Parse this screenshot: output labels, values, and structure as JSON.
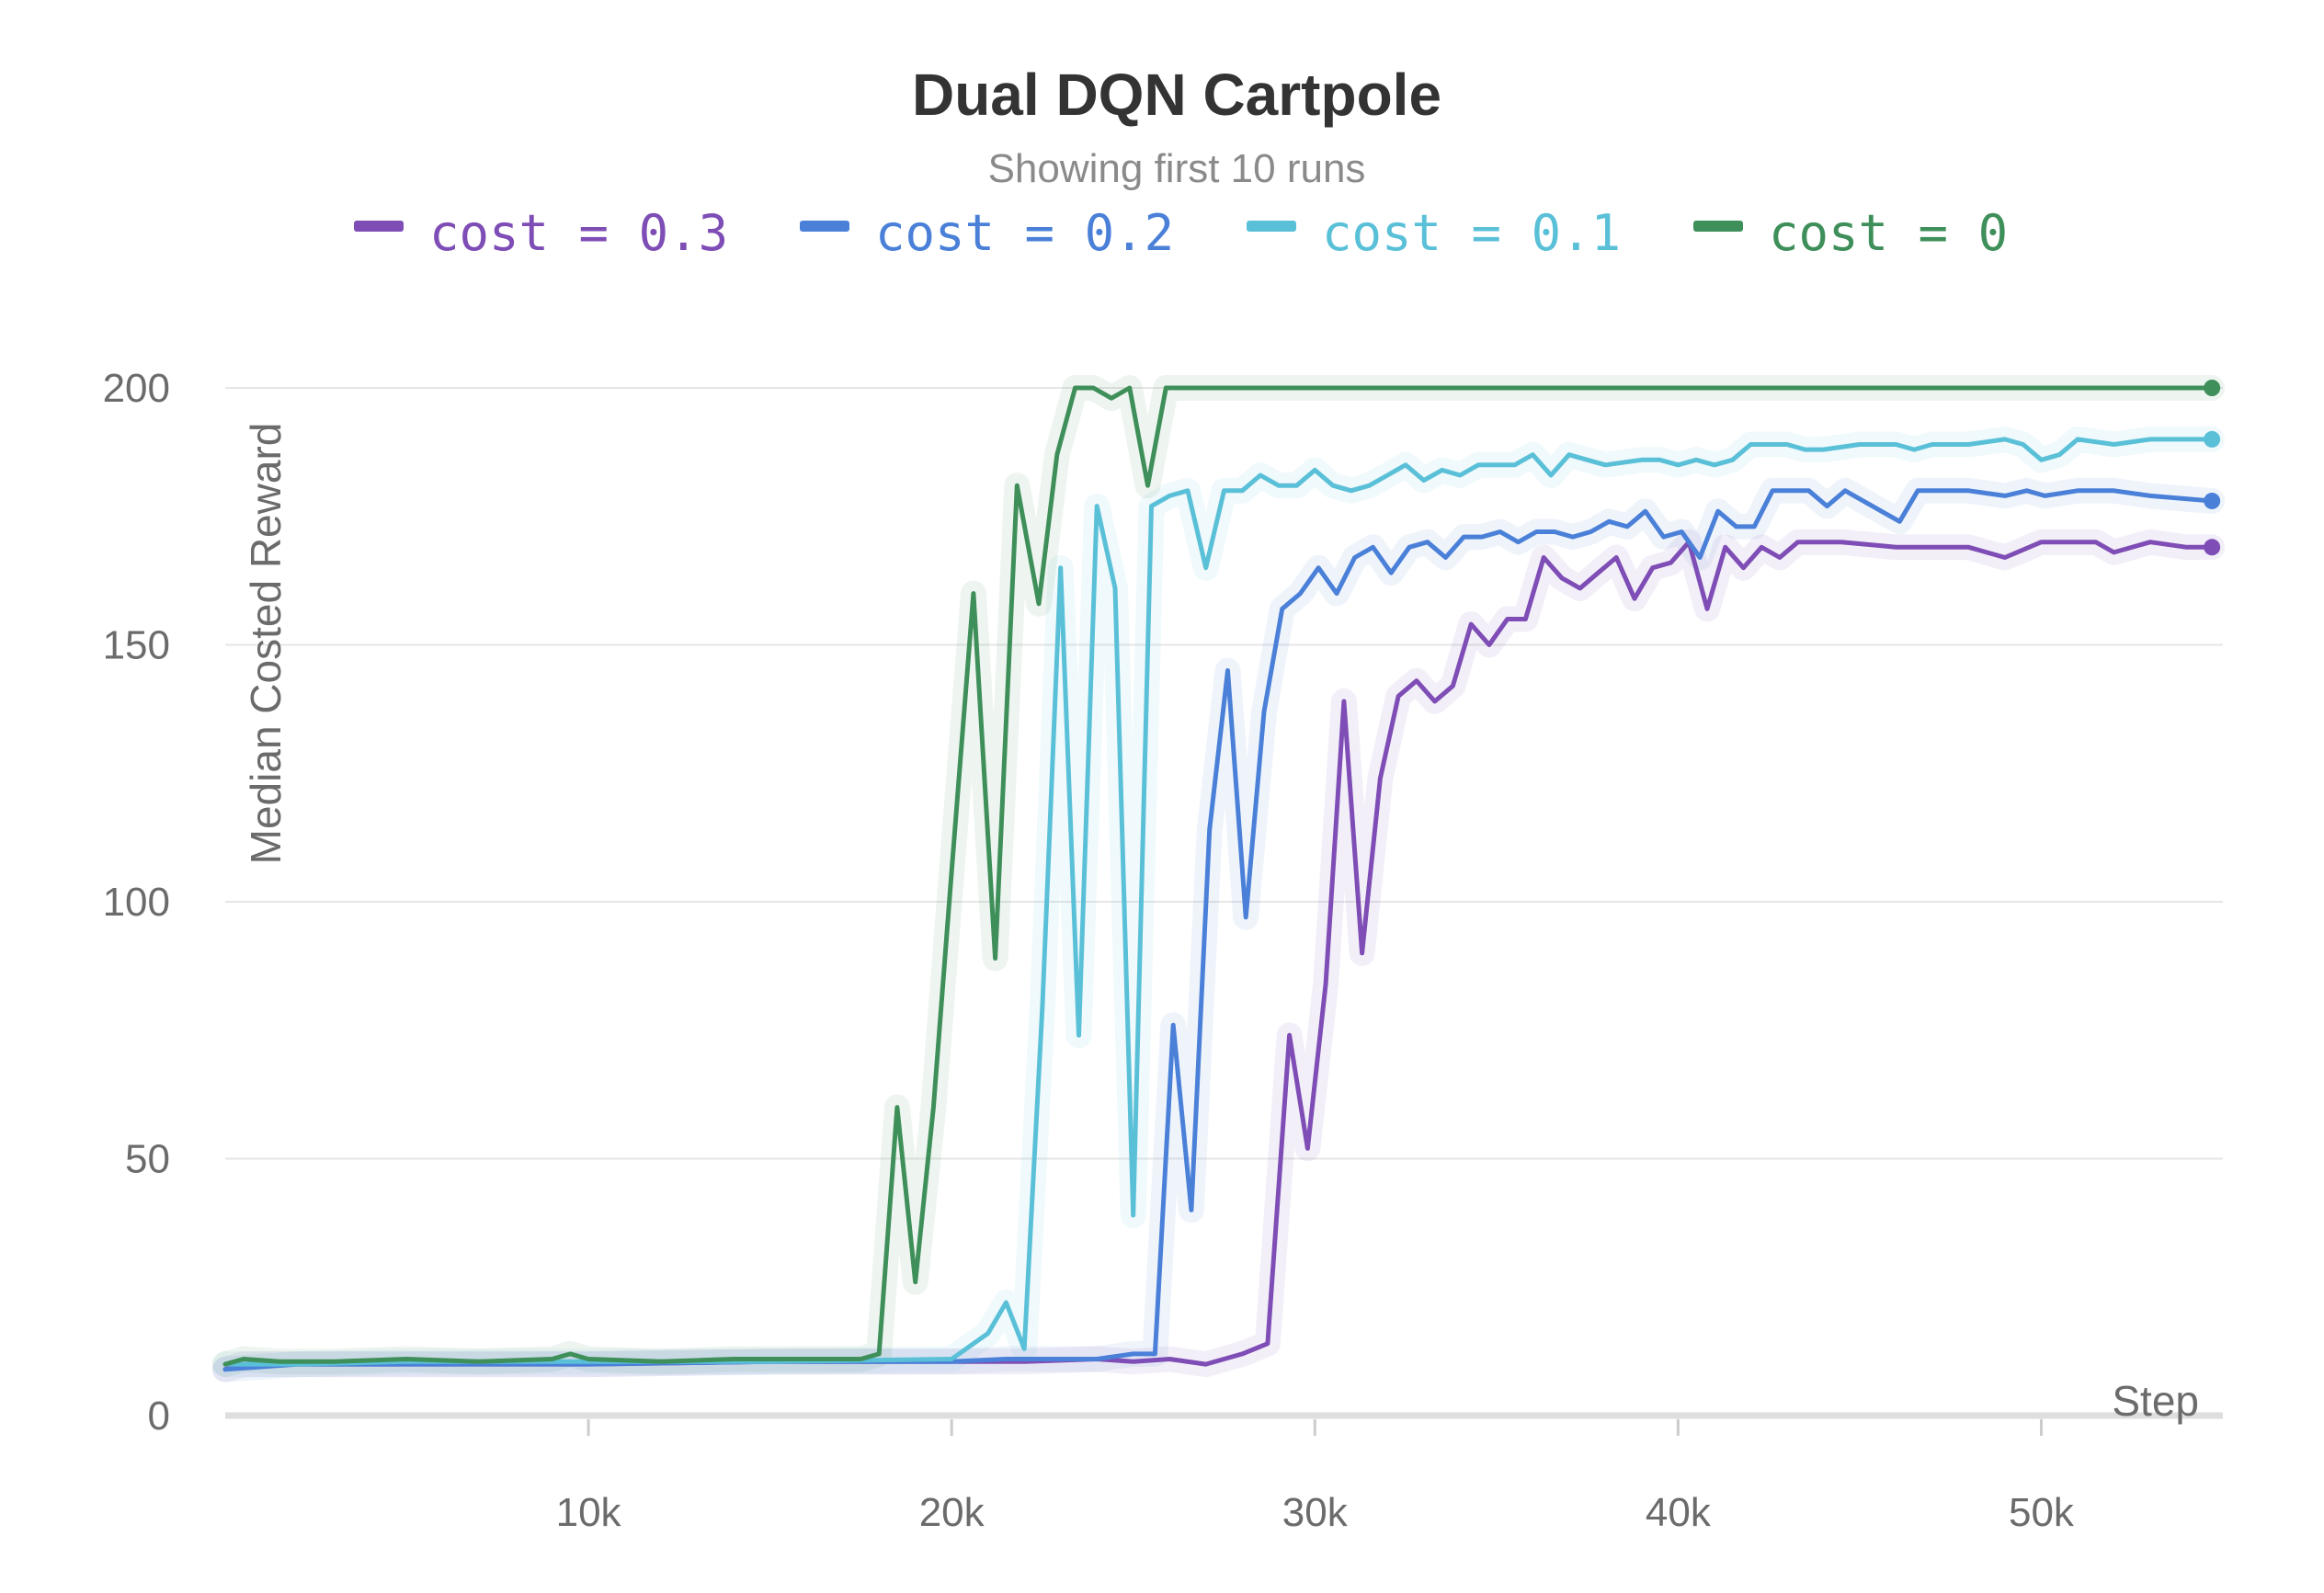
{
  "chart_data": {
    "type": "line",
    "title": "Dual DQN Cartpole",
    "subtitle": "Showing first 10 runs",
    "xlabel": "Step",
    "ylabel": "Median Costed Reward",
    "xlim": [
      0,
      55000
    ],
    "ylim": [
      0,
      200
    ],
    "x_ticks": [
      10000,
      20000,
      30000,
      40000,
      50000
    ],
    "x_tick_labels": [
      "10k",
      "20k",
      "30k",
      "40k",
      "50k"
    ],
    "y_ticks": [
      0,
      50,
      100,
      150,
      200
    ],
    "y_tick_labels": [
      "0",
      "50",
      "100",
      "150",
      "200"
    ],
    "grid": true,
    "legend_position": "top",
    "series": [
      {
        "name": "cost = 0.3",
        "color": "#7e4db5",
        "points": [
          [
            0,
            9
          ],
          [
            500,
            10
          ],
          [
            2000,
            10
          ],
          [
            5000,
            10
          ],
          [
            10000,
            10
          ],
          [
            15000,
            10.5
          ],
          [
            20000,
            10.5
          ],
          [
            22000,
            10.5
          ],
          [
            24000,
            11
          ],
          [
            25000,
            10.5
          ],
          [
            26000,
            11
          ],
          [
            27000,
            10
          ],
          [
            28000,
            12
          ],
          [
            28700,
            14
          ],
          [
            29300,
            74
          ],
          [
            29800,
            52
          ],
          [
            30300,
            84
          ],
          [
            30800,
            139
          ],
          [
            31300,
            90
          ],
          [
            31800,
            124
          ],
          [
            32300,
            140
          ],
          [
            32800,
            143
          ],
          [
            33300,
            139
          ],
          [
            33800,
            142
          ],
          [
            34300,
            154
          ],
          [
            34800,
            150
          ],
          [
            35300,
            155
          ],
          [
            35800,
            155
          ],
          [
            36300,
            167
          ],
          [
            36800,
            163
          ],
          [
            37300,
            161
          ],
          [
            37800,
            164
          ],
          [
            38300,
            167
          ],
          [
            38800,
            159
          ],
          [
            39300,
            165
          ],
          [
            39800,
            166
          ],
          [
            40300,
            170
          ],
          [
            40800,
            157
          ],
          [
            41300,
            169
          ],
          [
            41800,
            165
          ],
          [
            42300,
            169
          ],
          [
            42800,
            167
          ],
          [
            43300,
            170
          ],
          [
            44500,
            170
          ],
          [
            46000,
            169
          ],
          [
            48000,
            169
          ],
          [
            49000,
            167
          ],
          [
            50000,
            170
          ],
          [
            51500,
            170
          ],
          [
            52000,
            168
          ],
          [
            53000,
            170
          ],
          [
            54000,
            169
          ],
          [
            54700,
            169
          ]
        ]
      },
      {
        "name": "cost = 0.2",
        "color": "#4a80d8",
        "points": [
          [
            0,
            9
          ],
          [
            2000,
            10
          ],
          [
            5000,
            10
          ],
          [
            10000,
            10
          ],
          [
            15000,
            10.5
          ],
          [
            20000,
            10.5
          ],
          [
            21500,
            11
          ],
          [
            22500,
            11
          ],
          [
            24000,
            11
          ],
          [
            25000,
            12
          ],
          [
            25600,
            12
          ],
          [
            26100,
            76
          ],
          [
            26600,
            40
          ],
          [
            27100,
            114
          ],
          [
            27600,
            145
          ],
          [
            28100,
            97
          ],
          [
            28600,
            137
          ],
          [
            29100,
            157
          ],
          [
            29600,
            160
          ],
          [
            30100,
            165
          ],
          [
            30600,
            160
          ],
          [
            31100,
            167
          ],
          [
            31600,
            169
          ],
          [
            32100,
            164
          ],
          [
            32600,
            169
          ],
          [
            33100,
            170
          ],
          [
            33600,
            167
          ],
          [
            34100,
            171
          ],
          [
            34600,
            171
          ],
          [
            35100,
            172
          ],
          [
            35600,
            170
          ],
          [
            36100,
            172
          ],
          [
            36600,
            172
          ],
          [
            37100,
            171
          ],
          [
            37600,
            172
          ],
          [
            38100,
            174
          ],
          [
            38600,
            173
          ],
          [
            39100,
            176
          ],
          [
            39600,
            171
          ],
          [
            40100,
            172
          ],
          [
            40600,
            167
          ],
          [
            41100,
            176
          ],
          [
            41600,
            173
          ],
          [
            42100,
            173
          ],
          [
            42600,
            180
          ],
          [
            43600,
            180
          ],
          [
            44100,
            177
          ],
          [
            44600,
            180
          ],
          [
            45600,
            176
          ],
          [
            46100,
            174
          ],
          [
            46600,
            180
          ],
          [
            48000,
            180
          ],
          [
            49000,
            179
          ],
          [
            49600,
            180
          ],
          [
            50100,
            179
          ],
          [
            51000,
            180
          ],
          [
            52000,
            180
          ],
          [
            53000,
            179
          ],
          [
            54700,
            178
          ]
        ]
      },
      {
        "name": "cost = 0.1",
        "color": "#5ac0d8",
        "points": [
          [
            0,
            10
          ],
          [
            2000,
            10
          ],
          [
            5000,
            10.5
          ],
          [
            10000,
            10.5
          ],
          [
            15000,
            10.5
          ],
          [
            20000,
            11
          ],
          [
            21000,
            16
          ],
          [
            21500,
            22
          ],
          [
            22000,
            13
          ],
          [
            22500,
            80
          ],
          [
            23000,
            165
          ],
          [
            23500,
            74
          ],
          [
            24000,
            177
          ],
          [
            24500,
            161
          ],
          [
            25000,
            39
          ],
          [
            25500,
            177
          ],
          [
            26000,
            179
          ],
          [
            26500,
            180
          ],
          [
            27000,
            165
          ],
          [
            27500,
            180
          ],
          [
            28000,
            180
          ],
          [
            28500,
            183
          ],
          [
            29000,
            181
          ],
          [
            29500,
            181
          ],
          [
            30000,
            184
          ],
          [
            30500,
            181
          ],
          [
            31000,
            180
          ],
          [
            31500,
            181
          ],
          [
            32000,
            183
          ],
          [
            32500,
            185
          ],
          [
            33000,
            182
          ],
          [
            33500,
            184
          ],
          [
            34000,
            183
          ],
          [
            34500,
            185
          ],
          [
            35500,
            185
          ],
          [
            36000,
            187
          ],
          [
            36500,
            183
          ],
          [
            37000,
            187
          ],
          [
            37500,
            186
          ],
          [
            38000,
            185
          ],
          [
            39000,
            186
          ],
          [
            39500,
            186
          ],
          [
            40000,
            185
          ],
          [
            40500,
            186
          ],
          [
            41000,
            185
          ],
          [
            41500,
            186
          ],
          [
            42000,
            189
          ],
          [
            43000,
            189
          ],
          [
            43500,
            188
          ],
          [
            44000,
            188
          ],
          [
            45000,
            189
          ],
          [
            46000,
            189
          ],
          [
            46500,
            188
          ],
          [
            47000,
            189
          ],
          [
            48000,
            189
          ],
          [
            49000,
            190
          ],
          [
            49500,
            189
          ],
          [
            50000,
            186
          ],
          [
            50500,
            187
          ],
          [
            51000,
            190
          ],
          [
            52000,
            189
          ],
          [
            53000,
            190
          ],
          [
            54700,
            190
          ]
        ]
      },
      {
        "name": "cost = 0",
        "color": "#3f8f5a",
        "points": [
          [
            0,
            10
          ],
          [
            500,
            11
          ],
          [
            1500,
            10.5
          ],
          [
            3000,
            10.5
          ],
          [
            5000,
            11
          ],
          [
            7000,
            10.5
          ],
          [
            9000,
            11
          ],
          [
            9500,
            12
          ],
          [
            10000,
            11
          ],
          [
            12000,
            10.5
          ],
          [
            14000,
            11
          ],
          [
            16000,
            11
          ],
          [
            17500,
            11
          ],
          [
            18000,
            12
          ],
          [
            18500,
            60
          ],
          [
            19000,
            26
          ],
          [
            19500,
            60
          ],
          [
            20000,
            106
          ],
          [
            20600,
            160
          ],
          [
            21200,
            89
          ],
          [
            21800,
            181
          ],
          [
            22400,
            158
          ],
          [
            22900,
            187
          ],
          [
            23400,
            200
          ],
          [
            23900,
            200
          ],
          [
            24400,
            198
          ],
          [
            24900,
            200
          ],
          [
            25400,
            181
          ],
          [
            25900,
            200
          ],
          [
            28000,
            200
          ],
          [
            30000,
            200
          ],
          [
            40000,
            200
          ],
          [
            50000,
            200
          ],
          [
            54700,
            200
          ]
        ]
      }
    ]
  }
}
